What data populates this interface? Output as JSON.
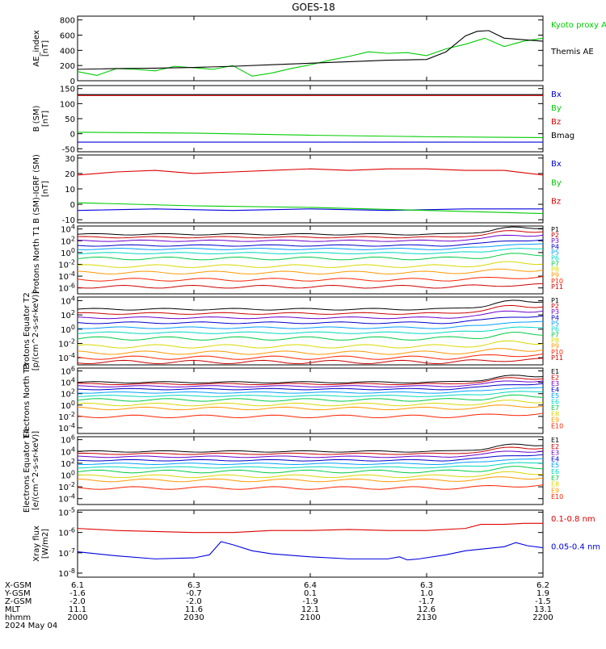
{
  "title": "GOES-18",
  "time_axis": {
    "ticks": [
      "2000",
      "2030",
      "2100",
      "2130",
      "2200"
    ],
    "rows": [
      {
        "label": "X-GSM",
        "values": [
          "6.1",
          "6.3",
          "6.4",
          "6.3",
          "6.2"
        ]
      },
      {
        "label": "Y-GSM",
        "values": [
          "-1.6",
          "-0.7",
          "0.1",
          "1.0",
          "1.9"
        ]
      },
      {
        "label": "Z-GSM",
        "values": [
          "-2.0",
          "-2.0",
          "-1.9",
          "-1.7",
          "-1.5"
        ]
      },
      {
        "label": "MLT",
        "values": [
          "11.1",
          "11.6",
          "12.1",
          "12.6",
          "13.1"
        ]
      },
      {
        "label": "hhmm",
        "values": [
          "2000",
          "2030",
          "2100",
          "2130",
          "2200"
        ]
      }
    ],
    "date": "2024 May 04"
  },
  "colors": {
    "black": "#000000",
    "red": "#dd0000",
    "green": "#00cc00",
    "blue": "#0000dd",
    "p_series": [
      "#000000",
      "#cc0000",
      "#6a00cc",
      "#0000cc",
      "#00a0ff",
      "#00d8c0",
      "#00cc44",
      "#d8d800",
      "#ff9900",
      "#ff2200",
      "#cc0000"
    ]
  },
  "chart_data": [
    {
      "type": "line",
      "ylabel": "AE_index [nT]",
      "ylim": [
        0,
        850
      ],
      "ytick_labels": [
        "0",
        "200",
        "400",
        "600",
        "800"
      ],
      "yticks": [
        0,
        200,
        400,
        600,
        800
      ],
      "legend": [
        "Kyoto proxy AE",
        "Themis AE"
      ],
      "series": [
        {
          "name": "Kyoto proxy AE",
          "color": "#00cc00",
          "x": [
            0,
            5,
            10,
            15,
            20,
            25,
            30,
            35,
            40,
            45,
            50,
            55,
            60,
            65,
            70,
            75,
            80,
            85,
            90,
            95,
            100,
            105,
            110,
            115,
            120
          ],
          "y": [
            120,
            70,
            160,
            150,
            130,
            190,
            170,
            150,
            200,
            60,
            100,
            160,
            210,
            270,
            320,
            380,
            360,
            370,
            330,
            420,
            480,
            560,
            450,
            520,
            560
          ]
        },
        {
          "name": "Themis AE",
          "color": "#000000",
          "x": [
            0,
            10,
            20,
            30,
            40,
            50,
            60,
            70,
            80,
            90,
            95,
            100,
            103,
            106,
            110,
            115,
            120
          ],
          "y": [
            150,
            160,
            165,
            175,
            190,
            210,
            230,
            250,
            270,
            280,
            380,
            590,
            650,
            660,
            560,
            540,
            520
          ]
        }
      ]
    },
    {
      "type": "line",
      "ylabel": "B (SM) [nT]",
      "ylim": [
        -60,
        160
      ],
      "ytick_labels": [
        "-50",
        "0",
        "50",
        "100",
        "150"
      ],
      "yticks": [
        -50,
        0,
        50,
        100,
        150
      ],
      "legend": [
        "Bx",
        "By",
        "Bz",
        "Bmag"
      ],
      "series": [
        {
          "name": "Bx",
          "color": "#0000dd",
          "x": [
            0,
            120
          ],
          "y": [
            -28,
            -28
          ]
        },
        {
          "name": "By",
          "color": "#00cc00",
          "x": [
            0,
            30,
            60,
            90,
            120
          ],
          "y": [
            5,
            2,
            -5,
            -10,
            -13
          ]
        },
        {
          "name": "Bz",
          "color": "#dd0000",
          "x": [
            0,
            120
          ],
          "y": [
            127,
            127
          ]
        },
        {
          "name": "Bmag",
          "color": "#000000",
          "x": [
            0,
            120
          ],
          "y": [
            130,
            130
          ]
        }
      ]
    },
    {
      "type": "line",
      "ylabel": "B (SM)-IGRF (SM) [nT]",
      "ylim": [
        -12,
        32
      ],
      "ytick_labels": [
        "-10",
        "0",
        "10",
        "20",
        "30"
      ],
      "yticks": [
        -10,
        0,
        10,
        20,
        30
      ],
      "legend": [
        "Bx",
        "By",
        "Bz"
      ],
      "series": [
        {
          "name": "Bx",
          "color": "#0000dd",
          "x": [
            0,
            20,
            40,
            60,
            80,
            100,
            120
          ],
          "y": [
            -4,
            -3,
            -4,
            -3,
            -4,
            -3,
            -3
          ]
        },
        {
          "name": "By",
          "color": "#00cc00",
          "x": [
            0,
            30,
            60,
            90,
            120
          ],
          "y": [
            1,
            -1,
            -2,
            -4,
            -6
          ]
        },
        {
          "name": "Bz",
          "color": "#dd0000",
          "x": [
            0,
            10,
            20,
            30,
            40,
            50,
            60,
            70,
            80,
            90,
            100,
            110,
            120
          ],
          "y": [
            19,
            21,
            22,
            20,
            21,
            22,
            23,
            22,
            23,
            23,
            22,
            22,
            19
          ]
        }
      ]
    },
    {
      "type": "line",
      "ylabel": "Protons North T1",
      "log": true,
      "ylim": [
        -7,
        4.5
      ],
      "ytick_labels": [
        "10^4",
        "10^2",
        "10^0",
        "10^-2",
        "10^-4",
        "10^-6"
      ],
      "yticks": [
        4,
        2,
        0,
        -2,
        -4,
        -6
      ],
      "legend": [
        "P1",
        "P2",
        "P3",
        "P4",
        "P5",
        "P6",
        "P7",
        "P8",
        "P9",
        "P10",
        "P11"
      ],
      "base_levels": [
        3.1,
        2.6,
        2.0,
        1.2,
        0.6,
        -0.1,
        -1.0,
        -2.3,
        -3.4,
        -4.6,
        -5.8
      ]
    },
    {
      "type": "line",
      "ylabel": "Protons Equator T2 [p/(cm^2-s-sr-keV)]",
      "log": true,
      "ylim": [
        -5,
        4.5
      ],
      "ytick_labels": [
        "10^4",
        "10^2",
        "10^0",
        "10^-2",
        "10^-4"
      ],
      "yticks": [
        4,
        2,
        0,
        -2,
        -4
      ],
      "legend": [
        "P1",
        "P2",
        "P3",
        "P4",
        "P5",
        "P6",
        "P7",
        "P8",
        "P9",
        "P10",
        "P11"
      ],
      "base_levels": [
        2.8,
        2.2,
        1.6,
        0.9,
        0.2,
        -0.5,
        -1.3,
        -2.4,
        -3.3,
        -4.0,
        -4.6
      ]
    },
    {
      "type": "line",
      "ylabel": "Electrons North T3",
      "log": true,
      "ylim": [
        -5,
        6.5
      ],
      "ytick_labels": [
        "10^6",
        "10^4",
        "10^2",
        "10^0",
        "10^-2",
        "10^-4"
      ],
      "yticks": [
        6,
        4,
        2,
        0,
        -2,
        -4
      ],
      "legend": [
        "E1",
        "E2",
        "E3",
        "E4",
        "E5",
        "E6",
        "E7",
        "E8",
        "E9",
        "E10"
      ],
      "base_levels": [
        4.0,
        3.7,
        3.3,
        2.8,
        2.2,
        1.6,
        0.9,
        0.1,
        -0.6,
        -2.0
      ]
    },
    {
      "type": "line",
      "ylabel": "Electrons Equator T4 [e/(cm^2-s-sr-keV)]",
      "log": true,
      "ylim": [
        -5,
        6.5
      ],
      "ytick_labels": [
        "10^6",
        "10^4",
        "10^2",
        "10^0",
        "10^-2",
        "10^-4"
      ],
      "yticks": [
        6,
        4,
        2,
        0,
        -2,
        -4
      ],
      "legend": [
        "E1",
        "E2",
        "E3",
        "E4",
        "E5",
        "E6",
        "E7",
        "E8",
        "E9",
        "E10"
      ],
      "base_levels": [
        4.0,
        3.6,
        3.1,
        2.5,
        1.9,
        1.3,
        0.6,
        -0.2,
        -0.9,
        -2.2
      ]
    },
    {
      "type": "line",
      "ylabel": "Xray flux [W/m2]",
      "log": true,
      "ylim": [
        -8.2,
        -4.9
      ],
      "ytick_labels": [
        "10^-5",
        "10^-6",
        "10^-7",
        "10^-8"
      ],
      "yticks": [
        -5,
        -6,
        -7,
        -8
      ],
      "legend": [
        "0.1-0.8 nm",
        "0.05-0.4 nm"
      ],
      "series": [
        {
          "name": "0.1-0.8 nm",
          "color": "#dd0000",
          "x": [
            0,
            10,
            20,
            30,
            40,
            50,
            60,
            70,
            80,
            90,
            100,
            104,
            110,
            115,
            120
          ],
          "y": [
            -5.8,
            -5.9,
            -5.95,
            -6.0,
            -6.0,
            -5.9,
            -5.9,
            -5.85,
            -5.9,
            -5.9,
            -5.8,
            -5.6,
            -5.6,
            -5.55,
            -5.55
          ]
        },
        {
          "name": "0.05-0.4 nm",
          "color": "#0000dd",
          "x": [
            0,
            10,
            20,
            30,
            34,
            37,
            40,
            45,
            50,
            60,
            70,
            80,
            83,
            85,
            88,
            95,
            100,
            105,
            110,
            113,
            116,
            120
          ],
          "y": [
            -6.95,
            -7.15,
            -7.3,
            -7.25,
            -7.1,
            -6.45,
            -6.6,
            -6.9,
            -7.05,
            -7.2,
            -7.3,
            -7.3,
            -7.2,
            -7.35,
            -7.3,
            -7.1,
            -6.9,
            -6.8,
            -6.7,
            -6.5,
            -6.65,
            -6.75
          ]
        }
      ]
    }
  ]
}
